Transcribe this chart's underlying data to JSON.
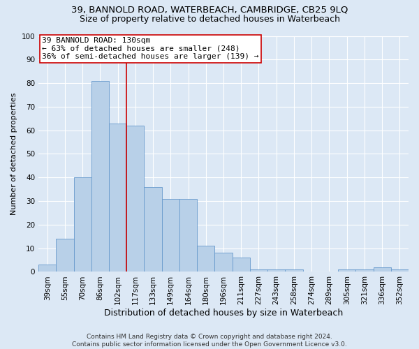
{
  "title": "39, BANNOLD ROAD, WATERBEACH, CAMBRIDGE, CB25 9LQ",
  "subtitle": "Size of property relative to detached houses in Waterbeach",
  "xlabel": "Distribution of detached houses by size in Waterbeach",
  "ylabel": "Number of detached properties",
  "categories": [
    "39sqm",
    "55sqm",
    "70sqm",
    "86sqm",
    "102sqm",
    "117sqm",
    "133sqm",
    "149sqm",
    "164sqm",
    "180sqm",
    "196sqm",
    "211sqm",
    "227sqm",
    "243sqm",
    "258sqm",
    "274sqm",
    "289sqm",
    "305sqm",
    "321sqm",
    "336sqm",
    "352sqm"
  ],
  "values": [
    3,
    14,
    40,
    81,
    63,
    62,
    36,
    31,
    31,
    11,
    8,
    6,
    1,
    1,
    1,
    0,
    0,
    1,
    1,
    2,
    1
  ],
  "bar_color": "#b8d0e8",
  "bar_edge_color": "#6699cc",
  "bg_color": "#dce8f5",
  "grid_color": "#ffffff",
  "vline_pos": 5.5,
  "vline_color": "#cc0000",
  "annotation_line1": "39 BANNOLD ROAD: 130sqm",
  "annotation_line2": "← 63% of detached houses are smaller (248)",
  "annotation_line3": "36% of semi-detached houses are larger (139) →",
  "annotation_box_color": "#ffffff",
  "annotation_box_edge": "#cc0000",
  "ylim": [
    0,
    100
  ],
  "yticks": [
    0,
    10,
    20,
    30,
    40,
    50,
    60,
    70,
    80,
    90,
    100
  ],
  "footer": "Contains HM Land Registry data © Crown copyright and database right 2024.\nContains public sector information licensed under the Open Government Licence v3.0.",
  "title_fontsize": 9.5,
  "subtitle_fontsize": 9,
  "xlabel_fontsize": 9,
  "ylabel_fontsize": 8,
  "tick_fontsize": 7.5,
  "annot_fontsize": 8,
  "footer_fontsize": 6.5
}
